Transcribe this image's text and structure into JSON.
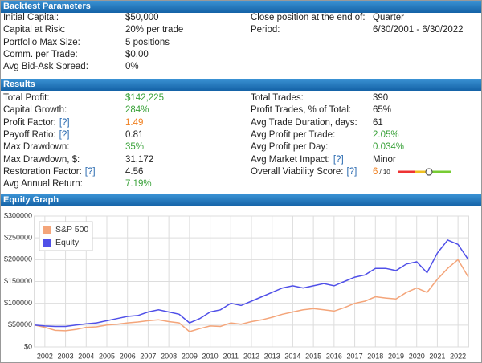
{
  "backtest_parameters": {
    "title": "Backtest Parameters",
    "left": [
      {
        "label": "Initial Capital:",
        "value": "$50,000"
      },
      {
        "label": "Capital at Risk:",
        "value": "20% per trade"
      },
      {
        "label": "Portfolio Max Size:",
        "value": "5 positions"
      },
      {
        "label": "Comm. per Trade:",
        "value": "$0.00"
      },
      {
        "label": "Avg Bid-Ask Spread:",
        "value": "0%"
      }
    ],
    "right": [
      {
        "label": "Close position at the end of:",
        "value": "Quarter"
      },
      {
        "label": "Period:",
        "value": "6/30/2001 - 6/30/2022"
      }
    ]
  },
  "results": {
    "title": "Results",
    "left": [
      {
        "label": "Total Profit:",
        "value": "$142,225"
      },
      {
        "label": "Capital Growth:",
        "value": "284%"
      },
      {
        "label": "Profit Factor:",
        "help": "[?]",
        "value": "1.49"
      },
      {
        "label": "Payoff Ratio:",
        "help": "[?]",
        "value": "0.81"
      },
      {
        "label": "Max Drawdown:",
        "value": "35%"
      },
      {
        "label": "Max Drawdown, $:",
        "value": "31,172"
      },
      {
        "label": "Restoration Factor:",
        "help": "[?]",
        "value": "4.56"
      },
      {
        "label": "Avg Annual Return:",
        "value": "7.19%"
      }
    ],
    "right": [
      {
        "label": "Total Trades:",
        "value": "390"
      },
      {
        "label": "Profit Trades, % of Total:",
        "value": "65%"
      },
      {
        "label": "Avg Trade Duration, days:",
        "value": "61"
      },
      {
        "label": "Avg Profit per Trade:",
        "value": "2.05%"
      },
      {
        "label": "Avg Profit per Day:",
        "value": "0.034%"
      },
      {
        "label": "Avg Market Impact:",
        "help": "[?]",
        "value": "Minor"
      },
      {
        "label": "Overall Viability Score:",
        "help": "[?]",
        "value": "6",
        "max": "/ 10"
      }
    ]
  },
  "chart_data": {
    "type": "line",
    "title": "Equity Graph",
    "x": [
      2001.5,
      2002,
      2002.5,
      2003,
      2003.5,
      2004,
      2004.5,
      2005,
      2005.5,
      2006,
      2006.5,
      2007,
      2007.5,
      2008,
      2008.5,
      2009,
      2009.5,
      2010,
      2010.5,
      2011,
      2011.5,
      2012,
      2012.5,
      2013,
      2013.5,
      2014,
      2014.5,
      2015,
      2015.5,
      2016,
      2016.5,
      2017,
      2017.5,
      2018,
      2018.5,
      2019,
      2019.5,
      2020,
      2020.5,
      2021,
      2021.5,
      2022,
      2022.5
    ],
    "series": [
      {
        "name": "S&P 500",
        "color": "#f4a57a",
        "values": [
          50000,
          45000,
          38000,
          37000,
          40000,
          45000,
          46000,
          50000,
          52000,
          55000,
          57000,
          60000,
          62000,
          58000,
          55000,
          35000,
          42000,
          48000,
          47000,
          55000,
          52000,
          58000,
          62000,
          68000,
          75000,
          80000,
          85000,
          88000,
          85000,
          82000,
          90000,
          100000,
          105000,
          115000,
          112000,
          110000,
          125000,
          135000,
          125000,
          155000,
          180000,
          200000,
          160000
        ]
      },
      {
        "name": "Equity",
        "color": "#5050e8",
        "values": [
          50000,
          48000,
          47000,
          47000,
          50000,
          53000,
          55000,
          60000,
          65000,
          70000,
          72000,
          80000,
          85000,
          80000,
          75000,
          55000,
          65000,
          80000,
          85000,
          100000,
          95000,
          105000,
          115000,
          125000,
          135000,
          140000,
          135000,
          140000,
          145000,
          140000,
          150000,
          160000,
          165000,
          180000,
          180000,
          175000,
          190000,
          195000,
          170000,
          215000,
          245000,
          235000,
          200000
        ]
      }
    ],
    "xlim": [
      2001.5,
      2022.5
    ],
    "xticks": [
      2002,
      2003,
      2004,
      2005,
      2006,
      2007,
      2008,
      2009,
      2010,
      2011,
      2012,
      2013,
      2014,
      2015,
      2016,
      2017,
      2018,
      2019,
      2020,
      2021,
      2022
    ],
    "ylim": [
      0,
      300000
    ],
    "yticks": [
      {
        "value": 0,
        "label": "$0"
      },
      {
        "value": 50000,
        "label": "$50000"
      },
      {
        "value": 100000,
        "label": "$100000"
      },
      {
        "value": 150000,
        "label": "$150000"
      },
      {
        "value": 200000,
        "label": "$200000"
      },
      {
        "value": 250000,
        "label": "$250000"
      },
      {
        "value": 300000,
        "label": "$300000"
      }
    ],
    "grid": true,
    "legend": "upper left"
  }
}
